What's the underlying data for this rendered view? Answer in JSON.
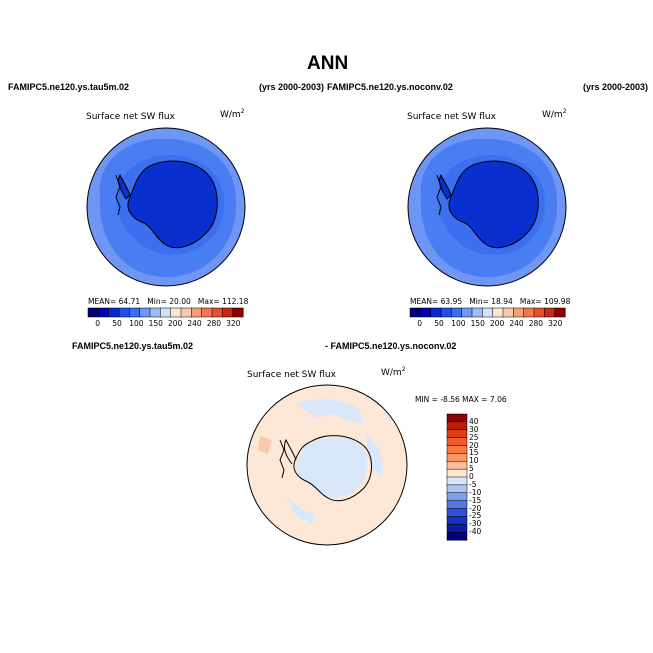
{
  "title": "ANN",
  "panels": [
    {
      "case_name": "FAMIPC5.ne120.ys.tau5m.02",
      "years": "(yrs 2000-2003)",
      "field_label": "Surface net SW flux",
      "units": "W/m",
      "units_exp": "2",
      "stats": {
        "mean_label": "MEAN=",
        "mean": "64.71",
        "min_label": "Min=",
        "min": "20.00",
        "max_label": "Max=",
        "max": "112.18"
      }
    },
    {
      "case_name": "FAMIPC5.ne120.ys.noconv.02",
      "years": "(yrs 2000-2003)",
      "field_label": "Surface net SW flux",
      "units": "W/m",
      "units_exp": "2",
      "stats": {
        "mean_label": "MEAN=",
        "mean": "63.95",
        "min_label": "Min=",
        "min": "18.94",
        "max_label": "Max=",
        "max": "109.98"
      }
    }
  ],
  "abs_colorbar": {
    "ticks": [
      "0",
      "50",
      "100",
      "150",
      "200",
      "240",
      "280",
      "320"
    ],
    "colors": [
      "#00007a",
      "#0000b4",
      "#0a28d2",
      "#1e50e6",
      "#3c6ef0",
      "#6e96f5",
      "#a0b9f8",
      "#d2e1fa",
      "#fde6d2",
      "#f9c8a8",
      "#f5a07a",
      "#f07850",
      "#e6502d",
      "#c82814",
      "#8c0000"
    ]
  },
  "diff_panel": {
    "case_a": "FAMIPC5.ne120.ys.tau5m.02",
    "case_b": "- FAMIPC5.ne120.ys.noconv.02",
    "field_label": "Surface net SW flux",
    "units": "W/m",
    "units_exp": "2",
    "min_max": "MIN =   -8.56  MAX =    7.06",
    "colorbar": {
      "ticks": [
        "40",
        "30",
        "25",
        "20",
        "15",
        "10",
        "5",
        "0",
        "-5",
        "-10",
        "-15",
        "-20",
        "-25",
        "-30",
        "-40"
      ],
      "colors": [
        "#8c0000",
        "#b41e0a",
        "#dc3c14",
        "#f05a28",
        "#f57846",
        "#f99664",
        "#fdbc9a",
        "#fde6d2",
        "#d7e6fa",
        "#aac4f5",
        "#7d9ff0",
        "#5078e6",
        "#2d50d7",
        "#1432be",
        "#0a1e9b",
        "#00007a"
      ]
    }
  },
  "colors": {
    "ocean": "#4a7df2",
    "ice": "#0a2fcf",
    "ring": "#6e97f5",
    "land_line": "#000000",
    "diff_bg": "#fde7d6",
    "diff_neg": "#d9e7fb"
  }
}
